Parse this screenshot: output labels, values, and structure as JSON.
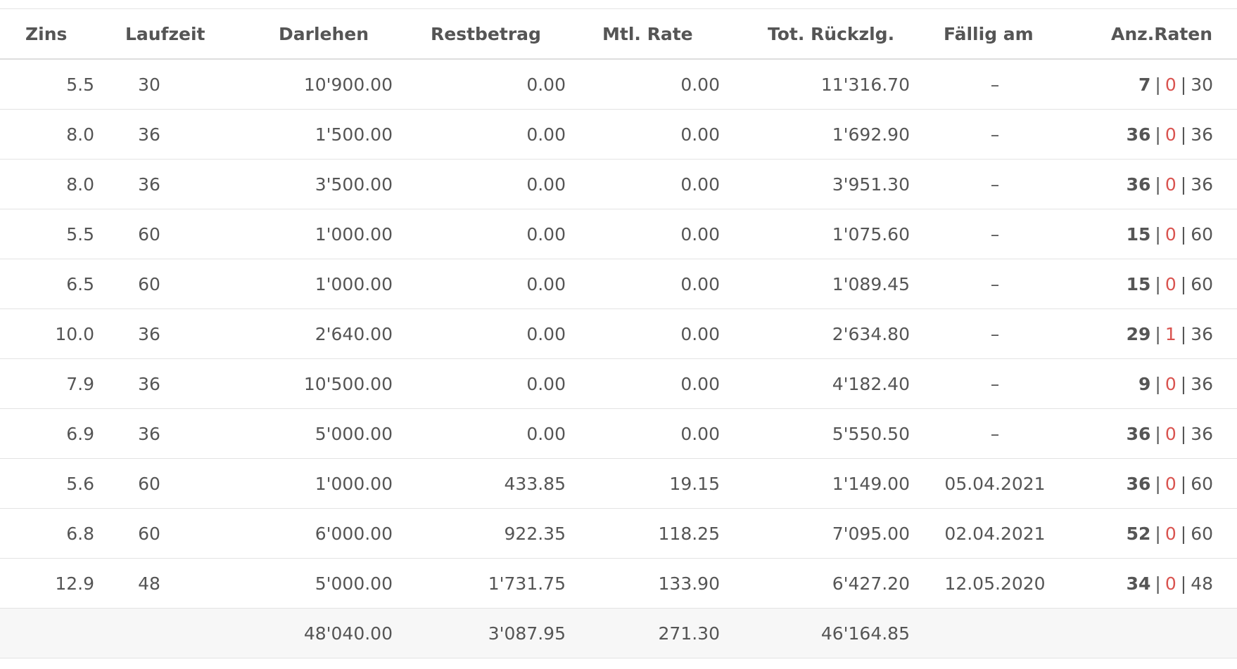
{
  "table": {
    "headers": {
      "zins": "Zins",
      "laufzeit": "Laufzeit",
      "darlehen": "Darlehen",
      "restbetrag": "Restbetrag",
      "mtl_rate": "Mtl. Rate",
      "tot_rueckzlg": "Tot. Rückzlg.",
      "faellig_am": "Fällig am",
      "anz_raten": "Anz.Raten"
    },
    "rows": [
      {
        "zins": "5.5",
        "laufzeit": "30",
        "darlehen": "10'900.00",
        "restbetrag": "0.00",
        "mtl_rate": "0.00",
        "tot_rueckzlg": "11'316.70",
        "faellig_am": "–",
        "raten_paid": "7",
        "raten_late": "0",
        "raten_total": "30"
      },
      {
        "zins": "8.0",
        "laufzeit": "36",
        "darlehen": "1'500.00",
        "restbetrag": "0.00",
        "mtl_rate": "0.00",
        "tot_rueckzlg": "1'692.90",
        "faellig_am": "–",
        "raten_paid": "36",
        "raten_late": "0",
        "raten_total": "36"
      },
      {
        "zins": "8.0",
        "laufzeit": "36",
        "darlehen": "3'500.00",
        "restbetrag": "0.00",
        "mtl_rate": "0.00",
        "tot_rueckzlg": "3'951.30",
        "faellig_am": "–",
        "raten_paid": "36",
        "raten_late": "0",
        "raten_total": "36"
      },
      {
        "zins": "5.5",
        "laufzeit": "60",
        "darlehen": "1'000.00",
        "restbetrag": "0.00",
        "mtl_rate": "0.00",
        "tot_rueckzlg": "1'075.60",
        "faellig_am": "–",
        "raten_paid": "15",
        "raten_late": "0",
        "raten_total": "60"
      },
      {
        "zins": "6.5",
        "laufzeit": "60",
        "darlehen": "1'000.00",
        "restbetrag": "0.00",
        "mtl_rate": "0.00",
        "tot_rueckzlg": "1'089.45",
        "faellig_am": "–",
        "raten_paid": "15",
        "raten_late": "0",
        "raten_total": "60"
      },
      {
        "zins": "10.0",
        "laufzeit": "36",
        "darlehen": "2'640.00",
        "restbetrag": "0.00",
        "mtl_rate": "0.00",
        "tot_rueckzlg": "2'634.80",
        "faellig_am": "–",
        "raten_paid": "29",
        "raten_late": "1",
        "raten_total": "36"
      },
      {
        "zins": "7.9",
        "laufzeit": "36",
        "darlehen": "10'500.00",
        "restbetrag": "0.00",
        "mtl_rate": "0.00",
        "tot_rueckzlg": "4'182.40",
        "faellig_am": "–",
        "raten_paid": "9",
        "raten_late": "0",
        "raten_total": "36"
      },
      {
        "zins": "6.9",
        "laufzeit": "36",
        "darlehen": "5'000.00",
        "restbetrag": "0.00",
        "mtl_rate": "0.00",
        "tot_rueckzlg": "5'550.50",
        "faellig_am": "–",
        "raten_paid": "36",
        "raten_late": "0",
        "raten_total": "36"
      },
      {
        "zins": "5.6",
        "laufzeit": "60",
        "darlehen": "1'000.00",
        "restbetrag": "433.85",
        "mtl_rate": "19.15",
        "tot_rueckzlg": "1'149.00",
        "faellig_am": "05.04.2021",
        "raten_paid": "36",
        "raten_late": "0",
        "raten_total": "60"
      },
      {
        "zins": "6.8",
        "laufzeit": "60",
        "darlehen": "6'000.00",
        "restbetrag": "922.35",
        "mtl_rate": "118.25",
        "tot_rueckzlg": "7'095.00",
        "faellig_am": "02.04.2021",
        "raten_paid": "52",
        "raten_late": "0",
        "raten_total": "60"
      },
      {
        "zins": "12.9",
        "laufzeit": "48",
        "darlehen": "5'000.00",
        "restbetrag": "1'731.75",
        "mtl_rate": "133.90",
        "tot_rueckzlg": "6'427.20",
        "faellig_am": "12.05.2020",
        "raten_paid": "34",
        "raten_late": "0",
        "raten_total": "48"
      }
    ],
    "totals": {
      "darlehen": "48'040.00",
      "restbetrag": "3'087.95",
      "mtl_rate": "271.30",
      "tot_rueckzlg": "46'164.85"
    },
    "separator": "|"
  },
  "colors": {
    "text": "#555555",
    "late": "#d9534f",
    "total_bg": "#f7f7f7",
    "rule": "#e3e3e3"
  }
}
